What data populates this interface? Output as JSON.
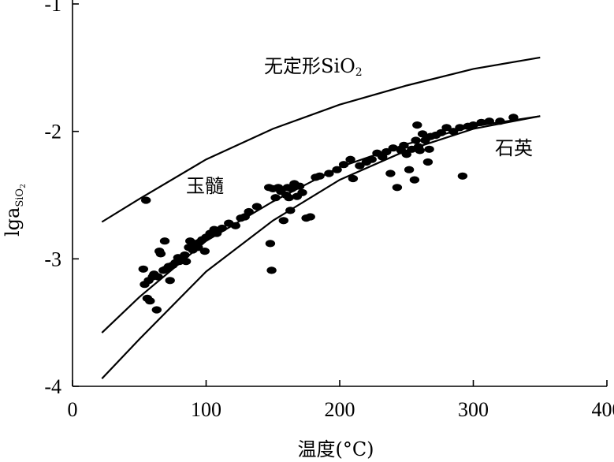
{
  "chart_data": {
    "type": "scatter",
    "title": "",
    "xlabel": "温度(°C)",
    "ylabel": "lga",
    "ylabel_sub": "SiO",
    "ylabel_subsub": "2",
    "xlim": [
      0,
      400
    ],
    "ylim": [
      -4,
      -1
    ],
    "xticks": [
      0,
      100,
      200,
      300,
      400
    ],
    "xtick_labels": [
      "0",
      "100",
      "200",
      "300",
      "400"
    ],
    "yticks": [
      -1,
      -2,
      -3,
      -4
    ],
    "ytick_labels": [
      "-1",
      "-2",
      "-3",
      "-4"
    ],
    "grid": false,
    "curves": [
      {
        "name": "无定形SiO",
        "label_sub": "2",
        "x": [
          22,
          50,
          100,
          150,
          200,
          250,
          300,
          350
        ],
        "y": [
          -2.71,
          -2.53,
          -2.22,
          -1.98,
          -1.79,
          -1.64,
          -1.51,
          -1.42
        ]
      },
      {
        "name": "玉髓",
        "label_sub": "",
        "x": [
          22,
          50,
          100,
          150,
          200,
          250,
          300,
          350
        ],
        "y": [
          -3.58,
          -3.3,
          -2.86,
          -2.55,
          -2.28,
          -2.1,
          -1.96,
          -1.88
        ]
      },
      {
        "name": "石英",
        "label_sub": "",
        "x": [
          22,
          50,
          100,
          150,
          200,
          250,
          300,
          350
        ],
        "y": [
          -3.94,
          -3.63,
          -3.1,
          -2.7,
          -2.38,
          -2.15,
          -1.98,
          -1.88
        ]
      }
    ],
    "points": [
      [
        55,
        -2.54
      ],
      [
        53,
        -3.08
      ],
      [
        54,
        -3.2
      ],
      [
        57,
        -3.17
      ],
      [
        56,
        -3.31
      ],
      [
        58,
        -3.33
      ],
      [
        60,
        -3.14
      ],
      [
        61,
        -3.12
      ],
      [
        63,
        -3.4
      ],
      [
        64,
        -3.14
      ],
      [
        65,
        -2.94
      ],
      [
        66,
        -2.96
      ],
      [
        68,
        -3.09
      ],
      [
        69,
        -2.86
      ],
      [
        70,
        -3.08
      ],
      [
        72,
        -3.06
      ],
      [
        73,
        -3.17
      ],
      [
        75,
        -3.05
      ],
      [
        77,
        -3.03
      ],
      [
        79,
        -2.99
      ],
      [
        80,
        -3.02
      ],
      [
        82,
        -3.0
      ],
      [
        84,
        -2.97
      ],
      [
        85,
        -3.02
      ],
      [
        87,
        -2.91
      ],
      [
        88,
        -2.86
      ],
      [
        90,
        -2.93
      ],
      [
        92,
        -2.88
      ],
      [
        94,
        -2.91
      ],
      [
        95,
        -2.87
      ],
      [
        97,
        -2.85
      ],
      [
        99,
        -2.94
      ],
      [
        100,
        -2.83
      ],
      [
        103,
        -2.8
      ],
      [
        106,
        -2.77
      ],
      [
        108,
        -2.8
      ],
      [
        112,
        -2.76
      ],
      [
        117,
        -2.72
      ],
      [
        122,
        -2.74
      ],
      [
        126,
        -2.68
      ],
      [
        129,
        -2.67
      ],
      [
        132,
        -2.63
      ],
      [
        138,
        -2.59
      ],
      [
        147,
        -2.44
      ],
      [
        148,
        -2.88
      ],
      [
        149,
        -3.09
      ],
      [
        150,
        -2.45
      ],
      [
        152,
        -2.52
      ],
      [
        154,
        -2.44
      ],
      [
        156,
        -2.47
      ],
      [
        158,
        -2.7
      ],
      [
        160,
        -2.5
      ],
      [
        161,
        -2.44
      ],
      [
        162,
        -2.52
      ],
      [
        163,
        -2.62
      ],
      [
        164,
        -2.45
      ],
      [
        166,
        -2.41
      ],
      [
        168,
        -2.51
      ],
      [
        170,
        -2.43
      ],
      [
        172,
        -2.48
      ],
      [
        175,
        -2.68
      ],
      [
        178,
        -2.67
      ],
      [
        182,
        -2.36
      ],
      [
        185,
        -2.35
      ],
      [
        192,
        -2.33
      ],
      [
        198,
        -2.3
      ],
      [
        203,
        -2.26
      ],
      [
        208,
        -2.22
      ],
      [
        210,
        -2.37
      ],
      [
        215,
        -2.27
      ],
      [
        220,
        -2.24
      ],
      [
        224,
        -2.22
      ],
      [
        228,
        -2.17
      ],
      [
        232,
        -2.2
      ],
      [
        235,
        -2.16
      ],
      [
        238,
        -2.33
      ],
      [
        240,
        -2.13
      ],
      [
        243,
        -2.44
      ],
      [
        246,
        -2.15
      ],
      [
        248,
        -2.11
      ],
      [
        250,
        -2.18
      ],
      [
        252,
        -2.3
      ],
      [
        254,
        -2.14
      ],
      [
        256,
        -2.38
      ],
      [
        257,
        -2.07
      ],
      [
        258,
        -1.95
      ],
      [
        259,
        -2.12
      ],
      [
        260,
        -2.15
      ],
      [
        262,
        -2.02
      ],
      [
        264,
        -2.07
      ],
      [
        266,
        -2.24
      ],
      [
        267,
        -2.14
      ],
      [
        268,
        -2.04
      ],
      [
        272,
        -2.03
      ],
      [
        276,
        -2.01
      ],
      [
        280,
        -1.97
      ],
      [
        285,
        -2.0
      ],
      [
        290,
        -1.97
      ],
      [
        292,
        -2.35
      ],
      [
        296,
        -1.96
      ],
      [
        300,
        -1.95
      ],
      [
        306,
        -1.93
      ],
      [
        312,
        -1.92
      ],
      [
        320,
        -1.92
      ],
      [
        330,
        -1.89
      ]
    ]
  }
}
